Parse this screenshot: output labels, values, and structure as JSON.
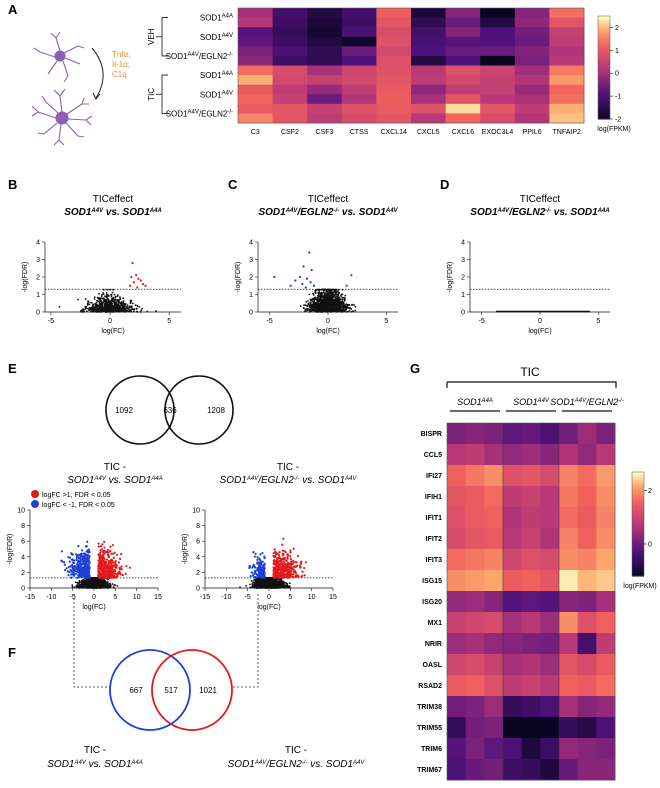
{
  "panels": {
    "A": "A",
    "B": "B",
    "C": "C",
    "D": "D",
    "E": "E",
    "F": "F",
    "G": "G"
  },
  "colors": {
    "heat_low": "#0b0524",
    "heat_mid": "#b63679",
    "heat_high": "#fcfdbf",
    "up": "#e31a1c",
    "down": "#1f3fd6",
    "neutral": "#111111",
    "cytokine_text": "#e8902a",
    "cell": "#8b5fb8"
  },
  "panelA": {
    "cytokines": [
      "Tnfα;",
      "Il-1α;",
      "C1q"
    ],
    "group_labels": [
      "VEH",
      "TIC"
    ],
    "row_labels": [
      "SOD1",
      "SOD1",
      "SOD1",
      "SOD1",
      "SOD1",
      "SOD1"
    ],
    "row_sups": [
      "A4A",
      "A4V",
      "A4V",
      "A4A",
      "A4V",
      "A4V"
    ],
    "row_suffix": [
      "",
      "",
      "/EGLN2",
      "",
      "",
      "/EGLN2"
    ],
    "row_suffix_sup": [
      "",
      "",
      "-/-",
      "",
      "",
      "-/-"
    ],
    "colorbar_ticks": [
      "2",
      "1",
      "0",
      "-1",
      "-2"
    ],
    "colorbar_label": "log(FPKM)"
  },
  "volcanoB": {
    "title": "TICeffect",
    "subtitle": "SOD1A4V vs. SOD1A4A",
    "xlabel": "log(FC)",
    "ylabel": "-log(FDR)",
    "yticks": [
      "0",
      "1",
      "2",
      "3",
      "4"
    ],
    "xticks": [
      "-5",
      "0",
      "5"
    ]
  },
  "volcanoC": {
    "title": "TICeffect",
    "subtitle": "SOD1A4V/EGLN2-/- vs. SOD1A4V",
    "xlabel": "log(FC)",
    "ylabel": "-log(FDR)",
    "yticks": [
      "0",
      "1",
      "2",
      "3",
      "4"
    ],
    "xticks": [
      "-5",
      "0",
      "5"
    ]
  },
  "volcanoD": {
    "title": "TICeffect",
    "subtitle": "SOD1A4V/EGLN2-/- vs. SOD1A4A",
    "xlabel": "log(FC)",
    "ylabel": "-log(FDR)",
    "yticks": [
      "0",
      "1",
      "2",
      "3",
      "4"
    ],
    "xticks": [
      "-5",
      "0",
      "5"
    ]
  },
  "vennE": {
    "left_only": "1092",
    "overlap": "636",
    "right_only": "1208"
  },
  "vennF": {
    "left_only": "667",
    "overlap": "517",
    "right_only": "1021"
  },
  "comparisons": {
    "tic": "TIC -",
    "left": "SOD1A4V vs. SOD1A4A",
    "right": "SOD1A4V/EGLN2-/- vs. SOD1A4V"
  },
  "volcanoE": {
    "legend_up": "logFC >1, FDR < 0.05",
    "legend_down": "logFC < -1, FDR < 0.05",
    "xlabel": "log(FC)",
    "ylabel": "-log(FDR)",
    "yticks": [
      "0",
      "2",
      "4",
      "6",
      "8",
      "10"
    ],
    "xticks": [
      "-15",
      "-10",
      "-5",
      "0",
      "5",
      "10",
      "15"
    ]
  },
  "panelG": {
    "title": "TIC",
    "colorbar_ticks": [
      "2",
      "0"
    ],
    "colorbar_label": "log(FPKM)"
  },
  "chart_data": [
    {
      "type": "heatmap",
      "panel": "A",
      "columns": [
        "C3",
        "CSF2",
        "CSF3",
        "CTSS",
        "CXCL14",
        "CXCL5",
        "CXCL6",
        "EXOC3L4",
        "PPIL6",
        "TNFAIP2"
      ],
      "rows": [
        "VEH SOD1A4A",
        "VEH SOD1A4A",
        "VEH SOD1A4V",
        "VEH SOD1A4V",
        "VEH SOD1A4V/EGLN2-/-",
        "VEH SOD1A4V/EGLN2-/-",
        "TIC SOD1A4A",
        "TIC SOD1A4A",
        "TIC SOD1A4V",
        "TIC SOD1A4V",
        "TIC SOD1A4V/EGLN2-/-",
        "TIC SOD1A4V/EGLN2-/-"
      ],
      "values": [
        [
          0.1,
          -1.1,
          -1.6,
          -1.1,
          1.2,
          -1.7,
          -0.3,
          -2.1,
          -0.3,
          1.4
        ],
        [
          0.3,
          -1.2,
          -1.7,
          -1.2,
          1.0,
          -1.4,
          -0.6,
          -1.6,
          -0.2,
          1.0
        ],
        [
          -0.8,
          -1.3,
          -1.8,
          -1.0,
          0.8,
          -1.1,
          -0.3,
          -0.9,
          -0.5,
          0.5
        ],
        [
          -0.7,
          -1.2,
          -1.6,
          -1.9,
          0.9,
          -1.0,
          -0.8,
          -0.9,
          -0.6,
          0.4
        ],
        [
          -0.4,
          -1.0,
          -1.4,
          -0.6,
          0.7,
          -0.9,
          -0.6,
          -0.6,
          -0.3,
          0.2
        ],
        [
          -0.2,
          -1.2,
          -1.4,
          -0.9,
          0.9,
          -1.6,
          -0.9,
          -2.0,
          -0.4,
          0.3
        ],
        [
          1.4,
          0.8,
          0.1,
          0.6,
          0.9,
          0.3,
          0.9,
          0.6,
          0.0,
          1.5
        ],
        [
          2.0,
          0.7,
          0.5,
          0.7,
          1.0,
          0.4,
          0.7,
          0.5,
          0.2,
          1.8
        ],
        [
          1.1,
          0.4,
          -0.1,
          0.4,
          1.1,
          -0.2,
          0.4,
          0.5,
          -0.1,
          1.3
        ],
        [
          1.3,
          0.5,
          -0.6,
          0.2,
          1.2,
          0.1,
          1.0,
          0.3,
          0.1,
          1.4
        ],
        [
          1.1,
          1.0,
          0.5,
          0.9,
          1.1,
          0.9,
          2.3,
          1.0,
          0.4,
          2.0
        ],
        [
          1.6,
          1.0,
          0.4,
          0.8,
          1.0,
          0.3,
          1.3,
          0.8,
          0.2,
          2.1
        ]
      ],
      "vmin": -2,
      "vmax": 2.5
    },
    {
      "type": "scatter",
      "panel": "B",
      "xlim": [
        -5.5,
        6
      ],
      "ylim": [
        0,
        4
      ],
      "fdr_threshold": 1.3,
      "up_points": [
        [
          1.9,
          2.8
        ],
        [
          2.2,
          2.1
        ],
        [
          1.8,
          2.0
        ],
        [
          2.4,
          1.9
        ],
        [
          2.6,
          1.8
        ],
        [
          2.0,
          1.7
        ],
        [
          2.8,
          1.6
        ],
        [
          1.7,
          1.5
        ],
        [
          3.0,
          1.5
        ],
        [
          2.3,
          1.4
        ]
      ]
    },
    {
      "type": "scatter",
      "panel": "C",
      "xlim": [
        -6,
        6
      ],
      "ylim": [
        0,
        4
      ],
      "fdr_threshold": 1.3,
      "down_points": [
        [
          -1.6,
          3.4
        ],
        [
          -2.1,
          2.6
        ],
        [
          -1.4,
          2.4
        ],
        [
          -2.4,
          2.0
        ],
        [
          -1.8,
          1.9
        ],
        [
          -2.8,
          1.8
        ],
        [
          -1.5,
          1.7
        ],
        [
          -2.2,
          1.6
        ],
        [
          -1.2,
          1.5
        ],
        [
          -4.6,
          2.0
        ],
        [
          -3.2,
          1.5
        ],
        [
          -1.9,
          1.4
        ]
      ],
      "up_points": [
        [
          2.0,
          2.1
        ],
        [
          1.6,
          1.5
        ]
      ]
    },
    {
      "type": "scatter",
      "panel": "D",
      "xlim": [
        -6,
        6
      ],
      "ylim": [
        0,
        4
      ],
      "fdr_threshold": 1.3,
      "up_points": [],
      "down_points": []
    },
    {
      "type": "heatmap",
      "panel": "G",
      "groups": [
        "SOD1A4A",
        "SOD1A4V",
        "SOD1A4V/EGLN2-/-"
      ],
      "rows": [
        "BISPR",
        "CCL5",
        "IFI27",
        "IFIH1",
        "IFIT1",
        "IFIT2",
        "IFIT3",
        "ISG15",
        "ISG20",
        "MX1",
        "NRIR",
        "OASL",
        "RSAD2",
        "TRIM38",
        "TRIM55",
        "TRIM6",
        "TRIM67"
      ],
      "values": [
        [
          0.2,
          0.3,
          0.2,
          -0.1,
          0.0,
          -0.3,
          0.1,
          0.5,
          0.2
        ],
        [
          0.8,
          0.9,
          0.6,
          0.4,
          0.5,
          0.3,
          0.7,
          0.4,
          0.8
        ],
        [
          1.6,
          1.8,
          2.0,
          1.3,
          1.4,
          1.2,
          1.9,
          1.7,
          2.1
        ],
        [
          1.4,
          1.5,
          1.7,
          0.9,
          1.0,
          0.8,
          1.8,
          1.6,
          2.0
        ],
        [
          1.3,
          1.5,
          1.6,
          0.7,
          0.9,
          0.8,
          1.7,
          1.5,
          1.9
        ],
        [
          1.2,
          1.4,
          1.5,
          0.8,
          1.0,
          0.7,
          1.9,
          1.6,
          2.0
        ],
        [
          1.7,
          1.8,
          1.9,
          1.1,
          1.3,
          1.2,
          2.0,
          1.9,
          2.2
        ],
        [
          2.0,
          2.1,
          2.2,
          1.5,
          1.6,
          1.4,
          2.6,
          2.3,
          2.4
        ],
        [
          0.4,
          0.5,
          0.3,
          -0.2,
          -0.1,
          -0.2,
          0.3,
          0.2,
          0.6
        ],
        [
          1.0,
          1.1,
          1.2,
          0.6,
          0.8,
          0.5,
          2.0,
          1.3,
          1.6
        ],
        [
          0.5,
          0.6,
          0.4,
          0.3,
          0.2,
          0.1,
          0.8,
          -0.4,
          0.9
        ],
        [
          1.1,
          1.2,
          1.0,
          0.6,
          0.7,
          0.5,
          1.4,
          1.2,
          1.5
        ],
        [
          1.5,
          1.6,
          1.3,
          0.9,
          1.0,
          0.8,
          1.6,
          1.5,
          1.7
        ],
        [
          0.1,
          0.2,
          0.5,
          -0.6,
          -0.5,
          -0.3,
          0.6,
          0.3,
          0.4
        ],
        [
          -0.6,
          0.1,
          0.2,
          -1.7,
          -1.6,
          -1.3,
          -0.6,
          -0.8,
          -0.3
        ],
        [
          -0.2,
          0.2,
          -0.1,
          -0.3,
          -0.9,
          -0.5,
          0.4,
          0.3,
          0.2
        ],
        [
          -0.3,
          0.0,
          0.1,
          -0.5,
          -0.6,
          -0.9,
          0.0,
          0.3,
          0.3
        ]
      ],
      "vmin": -1.2,
      "vmax": 2.7
    }
  ]
}
